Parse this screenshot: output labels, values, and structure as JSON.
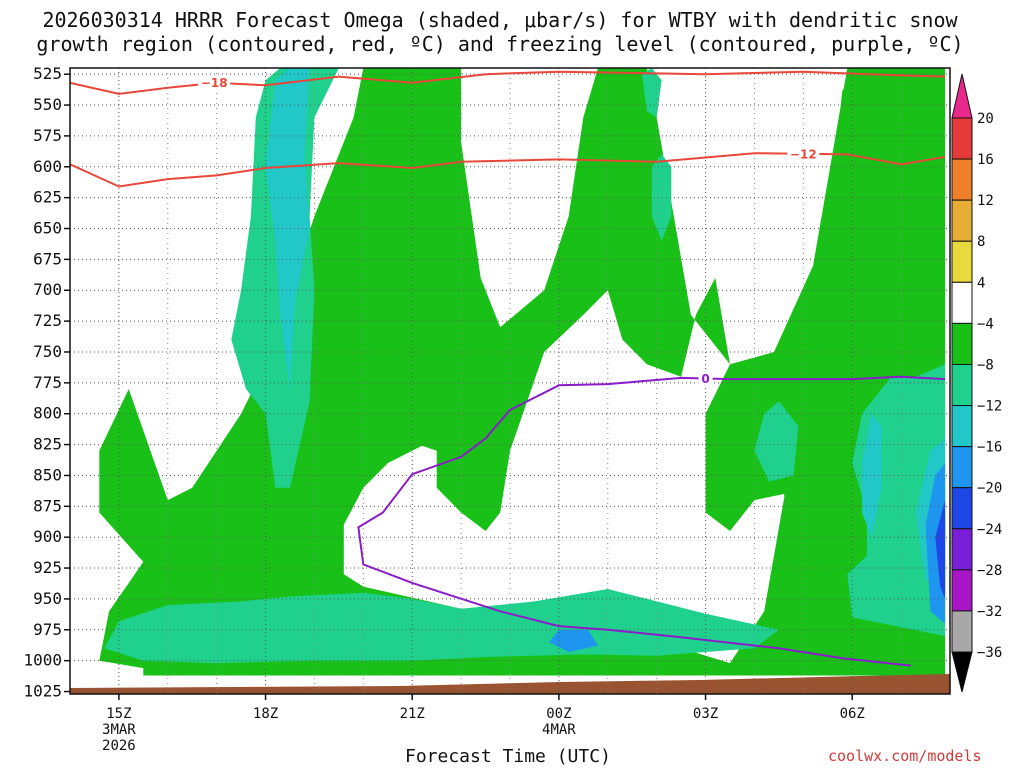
{
  "title_line1": "2026030314 HRRR Forecast Omega (shaded, μbar/s) for WTBY with dendritic snow",
  "title_line2": "growth region (contoured, red, ºC) and freezing level (contoured, purple, ºC)",
  "credit": "coolwx.com/models",
  "chart_data": {
    "type": "heatmap",
    "xlabel": "Forecast Time (UTC)",
    "ylabel": "",
    "x_ticks": [
      {
        "hour": 15,
        "label": "15Z",
        "sub1": "3MAR",
        "sub2": "2026"
      },
      {
        "hour": 18,
        "label": "18Z",
        "sub1": "",
        "sub2": ""
      },
      {
        "hour": 21,
        "label": "21Z",
        "sub1": "",
        "sub2": ""
      },
      {
        "hour": 24,
        "label": "00Z",
        "sub1": "4MAR",
        "sub2": ""
      },
      {
        "hour": 27,
        "label": "03Z",
        "sub1": "",
        "sub2": ""
      },
      {
        "hour": 30,
        "label": "06Z",
        "sub1": "",
        "sub2": ""
      }
    ],
    "xlim": [
      14,
      32
    ],
    "y_ticks": [
      525,
      550,
      575,
      600,
      625,
      650,
      675,
      700,
      725,
      750,
      775,
      800,
      825,
      850,
      875,
      900,
      925,
      950,
      975,
      1000,
      1025
    ],
    "ylim": [
      520,
      1027
    ],
    "colorbar": {
      "labels": [
        "20",
        "16",
        "12",
        "8",
        "4",
        "−4",
        "−8",
        "−12",
        "−16",
        "−20",
        "−24",
        "−28",
        "−32",
        "−36"
      ],
      "colors": [
        "#e63a3a",
        "#f07f2a",
        "#e8ad35",
        "#e8da3c",
        "#ffffff",
        "#18c018",
        "#1fd18c",
        "#22c7c7",
        "#1e96ef",
        "#1f47e8",
        "#7a1fd8",
        "#a815c6",
        "#a8a8a8"
      ],
      "top_cap": "#e8288a",
      "bottom_cap": "#000000"
    },
    "dgz_contours": [
      {
        "label": "−18",
        "label_at": [
          16.95,
          532
        ],
        "points": [
          [
            14.0,
            532
          ],
          [
            15.0,
            541
          ],
          [
            16.0,
            536
          ],
          [
            17.0,
            532
          ],
          [
            18.0,
            534
          ],
          [
            19.5,
            527
          ],
          [
            21.0,
            532
          ],
          [
            22.5,
            525
          ],
          [
            24.0,
            523
          ],
          [
            27.0,
            525
          ],
          [
            29.0,
            523
          ],
          [
            31.0,
            526
          ],
          [
            31.9,
            527
          ]
        ]
      },
      {
        "label": "−12",
        "label_at": [
          29.0,
          590
        ],
        "points": [
          [
            14.0,
            598
          ],
          [
            15.0,
            616
          ],
          [
            16.0,
            610
          ],
          [
            17.0,
            607
          ],
          [
            18.0,
            601
          ],
          [
            19.5,
            597
          ],
          [
            21.0,
            601
          ],
          [
            22.0,
            596
          ],
          [
            24.0,
            594
          ],
          [
            26.0,
            596
          ],
          [
            28.0,
            589
          ],
          [
            29.9,
            590
          ],
          [
            31.0,
            598
          ],
          [
            31.9,
            592
          ]
        ]
      }
    ],
    "freezing_level": {
      "label": "0",
      "label_at": [
        27.0,
        771
      ],
      "points": [
        [
          31.2,
          1004
        ],
        [
          29.8,
          998
        ],
        [
          28.5,
          990
        ],
        [
          26.5,
          981
        ],
        [
          25.0,
          975
        ],
        [
          24.0,
          972
        ],
        [
          22.8,
          960
        ],
        [
          21.0,
          937
        ],
        [
          20.0,
          922
        ],
        [
          19.9,
          892
        ],
        [
          20.4,
          880
        ],
        [
          21.0,
          849
        ],
        [
          22.0,
          835
        ],
        [
          22.5,
          820
        ],
        [
          23.0,
          797
        ],
        [
          24.0,
          777
        ],
        [
          25.0,
          776
        ],
        [
          26.5,
          771
        ],
        [
          27.5,
          772
        ],
        [
          30.0,
          772
        ],
        [
          31.0,
          770
        ],
        [
          31.9,
          772
        ]
      ]
    },
    "omega_regions": [
      {
        "level": -4,
        "color": "#18c018",
        "points": [
          [
            15.5,
            1006
          ],
          [
            15.5,
            1012
          ],
          [
            31.9,
            1012
          ],
          [
            31.9,
            520
          ],
          [
            30.3,
            520
          ],
          [
            29.8,
            538
          ],
          [
            29.5,
            640
          ],
          [
            29.2,
            720
          ],
          [
            29.0,
            740
          ],
          [
            29.0,
            780
          ],
          [
            28.2,
            960
          ],
          [
            27.5,
            1002
          ],
          [
            26.5,
            990
          ],
          [
            25.5,
            975
          ],
          [
            22.0,
            958
          ],
          [
            20.0,
            940
          ],
          [
            19.6,
            930
          ],
          [
            19.6,
            890
          ],
          [
            20.0,
            860
          ],
          [
            20.5,
            840
          ],
          [
            21.2,
            826
          ],
          [
            21.5,
            830
          ],
          [
            21.5,
            860
          ],
          [
            22.0,
            880
          ],
          [
            22.5,
            895
          ],
          [
            22.8,
            880
          ],
          [
            23.0,
            830
          ],
          [
            23.7,
            750
          ],
          [
            24.5,
            720
          ],
          [
            25.0,
            700
          ],
          [
            25.3,
            740
          ],
          [
            25.8,
            760
          ],
          [
            26.5,
            770
          ],
          [
            26.8,
            720
          ],
          [
            27.2,
            690
          ],
          [
            27.5,
            760
          ],
          [
            27.0,
            800
          ],
          [
            27.0,
            880
          ],
          [
            27.5,
            895
          ],
          [
            28.0,
            870
          ],
          [
            28.6,
            865
          ],
          [
            28.8,
            890
          ],
          [
            29.0,
            920
          ],
          [
            29.3,
            960
          ],
          [
            30.3,
            980
          ],
          [
            31.1,
            990
          ],
          [
            31.9,
            985
          ],
          [
            31.9,
            700
          ],
          [
            31.3,
            560
          ],
          [
            31.0,
            520
          ],
          [
            29.9,
            520
          ],
          [
            29.2,
            680
          ],
          [
            28.4,
            750
          ],
          [
            27.5,
            760
          ],
          [
            26.7,
            720
          ],
          [
            26.0,
            560
          ],
          [
            25.8,
            520
          ],
          [
            24.8,
            520
          ],
          [
            24.5,
            560
          ],
          [
            24.2,
            640
          ],
          [
            23.7,
            700
          ],
          [
            22.8,
            730
          ],
          [
            22.4,
            690
          ],
          [
            22.0,
            580
          ],
          [
            22.0,
            520
          ],
          [
            20.0,
            520
          ],
          [
            19.8,
            560
          ],
          [
            19.0,
            640
          ],
          [
            18.5,
            700
          ],
          [
            18.0,
            760
          ],
          [
            17.5,
            800
          ],
          [
            16.5,
            860
          ],
          [
            16.0,
            870
          ],
          [
            15.2,
            780
          ],
          [
            14.6,
            830
          ],
          [
            14.6,
            880
          ],
          [
            15.5,
            920
          ],
          [
            14.8,
            960
          ],
          [
            14.6,
            1000
          ],
          [
            15.5,
            1006
          ]
        ]
      },
      {
        "level": -8,
        "color": "#1fd18c",
        "points": [
          [
            14.7,
            990
          ],
          [
            15.0,
            968
          ],
          [
            16.0,
            955
          ],
          [
            17.5,
            952
          ],
          [
            18.5,
            948
          ],
          [
            20.0,
            945
          ],
          [
            21.0,
            950
          ],
          [
            22.0,
            958
          ],
          [
            23.5,
            952
          ],
          [
            25.0,
            942
          ],
          [
            27.0,
            962
          ],
          [
            28.5,
            975
          ],
          [
            28.0,
            990
          ],
          [
            26.0,
            996
          ],
          [
            24.5,
            995
          ],
          [
            22.5,
            997
          ],
          [
            21.0,
            1000
          ],
          [
            19.0,
            1000
          ],
          [
            17.0,
            1002
          ],
          [
            15.5,
            1000
          ]
        ]
      },
      {
        "level": -8,
        "color": "#1fd18c",
        "points": [
          [
            17.8,
            560
          ],
          [
            18.0,
            530
          ],
          [
            18.3,
            520
          ],
          [
            19.5,
            520
          ],
          [
            19.0,
            560
          ],
          [
            18.9,
            640
          ],
          [
            19.0,
            700
          ],
          [
            18.9,
            790
          ],
          [
            18.5,
            860
          ],
          [
            18.2,
            860
          ],
          [
            18.0,
            800
          ],
          [
            17.6,
            780
          ],
          [
            17.3,
            740
          ],
          [
            17.5,
            700
          ],
          [
            17.7,
            640
          ]
        ]
      },
      {
        "level": -8,
        "color": "#1fd18c",
        "points": [
          [
            28.2,
            800
          ],
          [
            28.5,
            790
          ],
          [
            28.9,
            810
          ],
          [
            28.8,
            850
          ],
          [
            28.3,
            855
          ],
          [
            28.0,
            830
          ]
        ]
      },
      {
        "level": -8,
        "color": "#1fd18c",
        "points": [
          [
            30.0,
            840
          ],
          [
            30.2,
            800
          ],
          [
            30.8,
            770
          ],
          [
            31.3,
            770
          ],
          [
            31.9,
            760
          ],
          [
            31.9,
            980
          ],
          [
            30.0,
            965
          ],
          [
            29.9,
            930
          ],
          [
            30.3,
            915
          ],
          [
            30.3,
            880
          ]
        ]
      },
      {
        "level": -8,
        "color": "#1fd18c",
        "points": [
          [
            25.9,
            600
          ],
          [
            26.1,
            590
          ],
          [
            26.3,
            600
          ],
          [
            26.3,
            640
          ],
          [
            26.1,
            660
          ],
          [
            25.9,
            640
          ]
        ]
      },
      {
        "level": -8,
        "color": "#1fd18c",
        "points": [
          [
            25.7,
            525
          ],
          [
            25.9,
            520
          ],
          [
            26.1,
            530
          ],
          [
            26.0,
            560
          ],
          [
            25.8,
            555
          ]
        ]
      },
      {
        "level": -12,
        "color": "#22c7c7",
        "points": [
          [
            18.2,
            530
          ],
          [
            18.5,
            520
          ],
          [
            18.9,
            520
          ],
          [
            18.8,
            590
          ],
          [
            18.9,
            650
          ],
          [
            18.6,
            710
          ],
          [
            18.5,
            780
          ],
          [
            18.3,
            720
          ],
          [
            18.2,
            660
          ],
          [
            18.0,
            600
          ]
        ]
      },
      {
        "level": -12,
        "color": "#22c7c7",
        "points": [
          [
            30.2,
            840
          ],
          [
            30.4,
            800
          ],
          [
            30.6,
            810
          ],
          [
            30.6,
            860
          ],
          [
            30.4,
            900
          ],
          [
            30.2,
            880
          ]
        ]
      },
      {
        "level": -12,
        "color": "#22c7c7",
        "points": [
          [
            31.3,
            880
          ],
          [
            31.6,
            830
          ],
          [
            31.9,
            820
          ],
          [
            31.9,
            940
          ],
          [
            31.5,
            935
          ]
        ]
      },
      {
        "level": -16,
        "color": "#1e96ef",
        "points": [
          [
            23.8,
            985
          ],
          [
            24.0,
            975
          ],
          [
            24.6,
            975
          ],
          [
            24.8,
            988
          ],
          [
            24.2,
            993
          ]
        ]
      },
      {
        "level": -16,
        "color": "#1e96ef",
        "points": [
          [
            31.5,
            890
          ],
          [
            31.7,
            850
          ],
          [
            31.9,
            840
          ],
          [
            31.9,
            970
          ],
          [
            31.6,
            960
          ]
        ]
      },
      {
        "level": -20,
        "color": "#1f47e8",
        "points": [
          [
            31.7,
            900
          ],
          [
            31.9,
            870
          ],
          [
            31.9,
            950
          ],
          [
            31.8,
            940
          ]
        ]
      }
    ]
  }
}
